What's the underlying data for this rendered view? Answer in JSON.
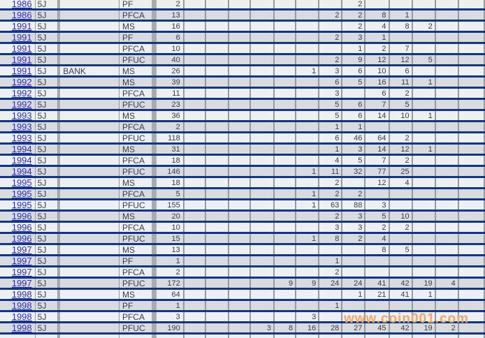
{
  "watermark": "www.coin001.com",
  "colors": {
    "row_border_blue": "#0a3699",
    "grid_gray": "#9a9a9a",
    "divider_gray": "#ababab",
    "row_light": "#f0f0f0",
    "row_dark": "#dbdbdb",
    "year_link_blue": "#2b2bc4",
    "cell_text": "#3c3c46",
    "watermark_orange": "#f2a65e"
  },
  "table": {
    "grade_column_count": 13,
    "rows": [
      {
        "year": "1986",
        "denom": "5J",
        "bank": "",
        "grade": "PF",
        "total": "2",
        "grades": [
          "",
          "",
          "",
          "",
          "",
          "",
          "",
          "2",
          "",
          "",
          "",
          "",
          ""
        ]
      },
      {
        "year": "1986",
        "denom": "5J",
        "bank": "",
        "grade": "PFCA",
        "total": "13",
        "grades": [
          "",
          "",
          "",
          "",
          "",
          "",
          "2",
          "2",
          "8",
          "1",
          "",
          "",
          ""
        ]
      },
      {
        "year": "1991",
        "denom": "5J",
        "bank": "",
        "grade": "MS",
        "total": "16",
        "grades": [
          "",
          "",
          "",
          "",
          "",
          "",
          "",
          "2",
          "4",
          "8",
          "2",
          "",
          ""
        ]
      },
      {
        "year": "1991",
        "denom": "5J",
        "bank": "",
        "grade": "PF",
        "total": "6",
        "grades": [
          "",
          "",
          "",
          "",
          "",
          "",
          "2",
          "3",
          "1",
          "",
          "",
          "",
          ""
        ]
      },
      {
        "year": "1991",
        "denom": "5J",
        "bank": "",
        "grade": "PFCA",
        "total": "10",
        "grades": [
          "",
          "",
          "",
          "",
          "",
          "",
          "",
          "1",
          "2",
          "7",
          "",
          "",
          ""
        ]
      },
      {
        "year": "1991",
        "denom": "5J",
        "bank": "",
        "grade": "PFUC",
        "total": "40",
        "grades": [
          "",
          "",
          "",
          "",
          "",
          "",
          "2",
          "9",
          "12",
          "12",
          "5",
          "",
          ""
        ]
      },
      {
        "year": "1991",
        "denom": "5J",
        "bank": "BANK",
        "grade": "MS",
        "total": "26",
        "grades": [
          "",
          "",
          "",
          "",
          "",
          "1",
          "3",
          "6",
          "10",
          "6",
          "",
          "",
          ""
        ]
      },
      {
        "year": "1992",
        "denom": "5J",
        "bank": "",
        "grade": "MS",
        "total": "39",
        "grades": [
          "",
          "",
          "",
          "",
          "",
          "",
          "6",
          "5",
          "16",
          "11",
          "1",
          "",
          ""
        ]
      },
      {
        "year": "1992",
        "denom": "5J",
        "bank": "",
        "grade": "PFCA",
        "total": "11",
        "grades": [
          "",
          "",
          "",
          "",
          "",
          "",
          "3",
          "",
          "6",
          "2",
          "",
          "",
          ""
        ]
      },
      {
        "year": "1992",
        "denom": "5J",
        "bank": "",
        "grade": "PFUC",
        "total": "23",
        "grades": [
          "",
          "",
          "",
          "",
          "",
          "",
          "5",
          "6",
          "7",
          "5",
          "",
          "",
          ""
        ]
      },
      {
        "year": "1993",
        "denom": "5J",
        "bank": "",
        "grade": "MS",
        "total": "36",
        "grades": [
          "",
          "",
          "",
          "",
          "",
          "",
          "5",
          "6",
          "14",
          "10",
          "1",
          "",
          ""
        ]
      },
      {
        "year": "1993",
        "denom": "5J",
        "bank": "",
        "grade": "PFCA",
        "total": "2",
        "grades": [
          "",
          "",
          "",
          "",
          "",
          "",
          "1",
          "1",
          "",
          "",
          "",
          "",
          ""
        ]
      },
      {
        "year": "1993",
        "denom": "5J",
        "bank": "",
        "grade": "PFUC",
        "total": "118",
        "grades": [
          "",
          "",
          "",
          "",
          "",
          "",
          "6",
          "46",
          "64",
          "2",
          "",
          "",
          ""
        ]
      },
      {
        "year": "1994",
        "denom": "5J",
        "bank": "",
        "grade": "MS",
        "total": "31",
        "grades": [
          "",
          "",
          "",
          "",
          "",
          "",
          "1",
          "3",
          "14",
          "12",
          "1",
          "",
          ""
        ]
      },
      {
        "year": "1994",
        "denom": "5J",
        "bank": "",
        "grade": "PFCA",
        "total": "18",
        "grades": [
          "",
          "",
          "",
          "",
          "",
          "",
          "4",
          "5",
          "7",
          "2",
          "",
          "",
          ""
        ]
      },
      {
        "year": "1994",
        "denom": "5J",
        "bank": "",
        "grade": "PFUC",
        "total": "146",
        "grades": [
          "",
          "",
          "",
          "",
          "",
          "1",
          "11",
          "32",
          "77",
          "25",
          "",
          "",
          ""
        ]
      },
      {
        "year": "1995",
        "denom": "5J",
        "bank": "",
        "grade": "MS",
        "total": "18",
        "grades": [
          "",
          "",
          "",
          "",
          "",
          "",
          "2",
          "",
          "12",
          "4",
          "",
          "",
          ""
        ]
      },
      {
        "year": "1995",
        "denom": "5J",
        "bank": "",
        "grade": "PFCA",
        "total": "5",
        "grades": [
          "",
          "",
          "",
          "",
          "",
          "1",
          "2",
          "2",
          "",
          "",
          "",
          "",
          ""
        ]
      },
      {
        "year": "1995",
        "denom": "5J",
        "bank": "",
        "grade": "PFUC",
        "total": "155",
        "grades": [
          "",
          "",
          "",
          "",
          "",
          "1",
          "63",
          "88",
          "3",
          "",
          "",
          "",
          ""
        ]
      },
      {
        "year": "1996",
        "denom": "5J",
        "bank": "",
        "grade": "MS",
        "total": "20",
        "grades": [
          "",
          "",
          "",
          "",
          "",
          "",
          "2",
          "3",
          "5",
          "10",
          "",
          "",
          ""
        ]
      },
      {
        "year": "1996",
        "denom": "5J",
        "bank": "",
        "grade": "PFCA",
        "total": "10",
        "grades": [
          "",
          "",
          "",
          "",
          "",
          "",
          "3",
          "3",
          "2",
          "2",
          "",
          "",
          ""
        ]
      },
      {
        "year": "1996",
        "denom": "5J",
        "bank": "",
        "grade": "PFUC",
        "total": "15",
        "grades": [
          "",
          "",
          "",
          "",
          "",
          "1",
          "8",
          "2",
          "4",
          "",
          "",
          "",
          ""
        ]
      },
      {
        "year": "1997",
        "denom": "5J",
        "bank": "",
        "grade": "MS",
        "total": "13",
        "grades": [
          "",
          "",
          "",
          "",
          "",
          "",
          "",
          "",
          "8",
          "5",
          "",
          "",
          ""
        ]
      },
      {
        "year": "1997",
        "denom": "5J",
        "bank": "",
        "grade": "PF",
        "total": "1",
        "grades": [
          "",
          "",
          "",
          "",
          "",
          "",
          "1",
          "",
          "",
          "",
          "",
          "",
          ""
        ]
      },
      {
        "year": "1997",
        "denom": "5J",
        "bank": "",
        "grade": "PFCA",
        "total": "2",
        "grades": [
          "",
          "",
          "",
          "",
          "",
          "",
          "2",
          "",
          "",
          "",
          "",
          "",
          ""
        ]
      },
      {
        "year": "1997",
        "denom": "5J",
        "bank": "",
        "grade": "PFUC",
        "total": "172",
        "grades": [
          "",
          "",
          "",
          "",
          "9",
          "9",
          "24",
          "24",
          "41",
          "42",
          "19",
          "4",
          ""
        ]
      },
      {
        "year": "1998",
        "denom": "5J",
        "bank": "",
        "grade": "MS",
        "total": "64",
        "grades": [
          "",
          "",
          "",
          "",
          "",
          "",
          "",
          "1",
          "21",
          "41",
          "1",
          "",
          ""
        ]
      },
      {
        "year": "1998",
        "denom": "5J",
        "bank": "",
        "grade": "PF",
        "total": "1",
        "grades": [
          "",
          "",
          "",
          "",
          "",
          "",
          "1",
          "",
          "",
          "",
          "",
          "",
          ""
        ]
      },
      {
        "year": "1998",
        "denom": "5J",
        "bank": "",
        "grade": "PFCA",
        "total": "3",
        "grades": [
          "",
          "",
          "",
          "",
          "",
          "3",
          "",
          "",
          "",
          "",
          "",
          "",
          ""
        ]
      },
      {
        "year": "1998",
        "denom": "5J",
        "bank": "",
        "grade": "PFUC",
        "total": "190",
        "grades": [
          "",
          "",
          "",
          "3",
          "8",
          "16",
          "28",
          "27",
          "45",
          "42",
          "19",
          "2",
          ""
        ]
      },
      {
        "year": "",
        "denom": "",
        "bank": "",
        "grade": "",
        "total": "",
        "grades": [
          "",
          "",
          "",
          "",
          "",
          "",
          "",
          "",
          "",
          "",
          "",
          "",
          ""
        ]
      }
    ]
  }
}
